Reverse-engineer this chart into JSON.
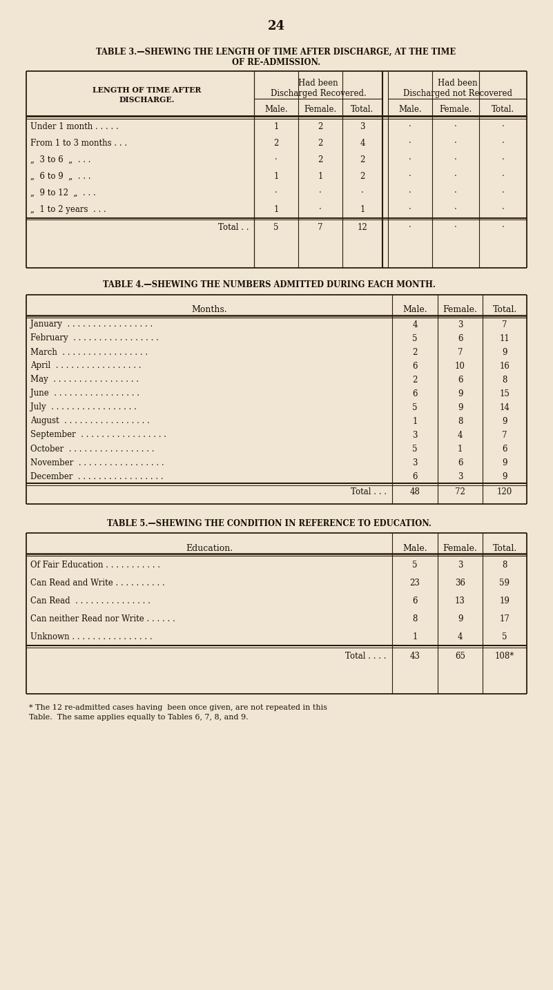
{
  "bg_color": "#f0e6d3",
  "page_number": "24",
  "t3_title1": "Table 3.—Shewing the length of time after discharge, at the time",
  "t3_title2": "of re-admission.",
  "t4_title": "Table 4.—Shewing the numbers admitted during each month.",
  "t5_title": "Table 5.—Shewing the condition in reference to education.",
  "t3_row_labels": [
    "Under 1 month . . . . .",
    "From 1 to 3 months . . .",
    "„  3 to 6  „  . . .",
    "„  6 to 9  „  . . .",
    "„  9 to 12  „  . . .",
    "„  1 to 2 years  . . ."
  ],
  "t3_recovered": [
    [
      "1",
      "2",
      "3"
    ],
    [
      "2",
      "2",
      "4"
    ],
    [
      "·",
      "2",
      "2"
    ],
    [
      "1",
      "1",
      "2"
    ],
    [
      "·",
      "·",
      "·"
    ],
    [
      "1",
      "·",
      "1"
    ]
  ],
  "t3_not_recovered": [
    [
      "·",
      "·",
      "·"
    ],
    [
      "·",
      "·",
      "·"
    ],
    [
      "·",
      "·",
      "·"
    ],
    [
      "·",
      "·",
      "·"
    ],
    [
      "·",
      "·",
      "·"
    ],
    [
      "·",
      "·",
      "·"
    ]
  ],
  "t3_total_r": [
    "5",
    "7",
    "12"
  ],
  "t3_total_nr": [
    "·",
    "·",
    "·"
  ],
  "t4_months": [
    "January",
    "February",
    "March",
    "April",
    "May",
    "June",
    "July",
    "August",
    "September",
    "October",
    "November",
    "December"
  ],
  "t4_male": [
    "4",
    "5",
    "2",
    "6",
    "2",
    "6",
    "5",
    "1",
    "3",
    "5",
    "3",
    "6"
  ],
  "t4_female": [
    "3",
    "6",
    "7",
    "10",
    "6",
    "9",
    "9",
    "8",
    "4",
    "1",
    "6",
    "3"
  ],
  "t4_total": [
    "7",
    "11",
    "9",
    "16",
    "8",
    "15",
    "14",
    "9",
    "7",
    "6",
    "9",
    "9"
  ],
  "t5_labels": [
    "Of Fair Education . . . . . . . . . . .",
    "Can Read and Write . . . . . . . . . .",
    "Can Read  . . . . . . . . . . . . . . .",
    "Can neither Read nor Write . . . . . .",
    "Unknown . . . . . . . . . . . . . . . ."
  ],
  "t5_male": [
    "5",
    "23",
    "6",
    "8",
    "1"
  ],
  "t5_female": [
    "3",
    "36",
    "13",
    "9",
    "4"
  ],
  "t5_total": [
    "8",
    "59",
    "19",
    "17",
    "5"
  ],
  "t5_footnote1": "* The 12 re-admitted cases having  been once given, are not repeated in this",
  "t5_footnote2": "Table.  The same applies equally to Tables 6, 7, 8, and 9."
}
